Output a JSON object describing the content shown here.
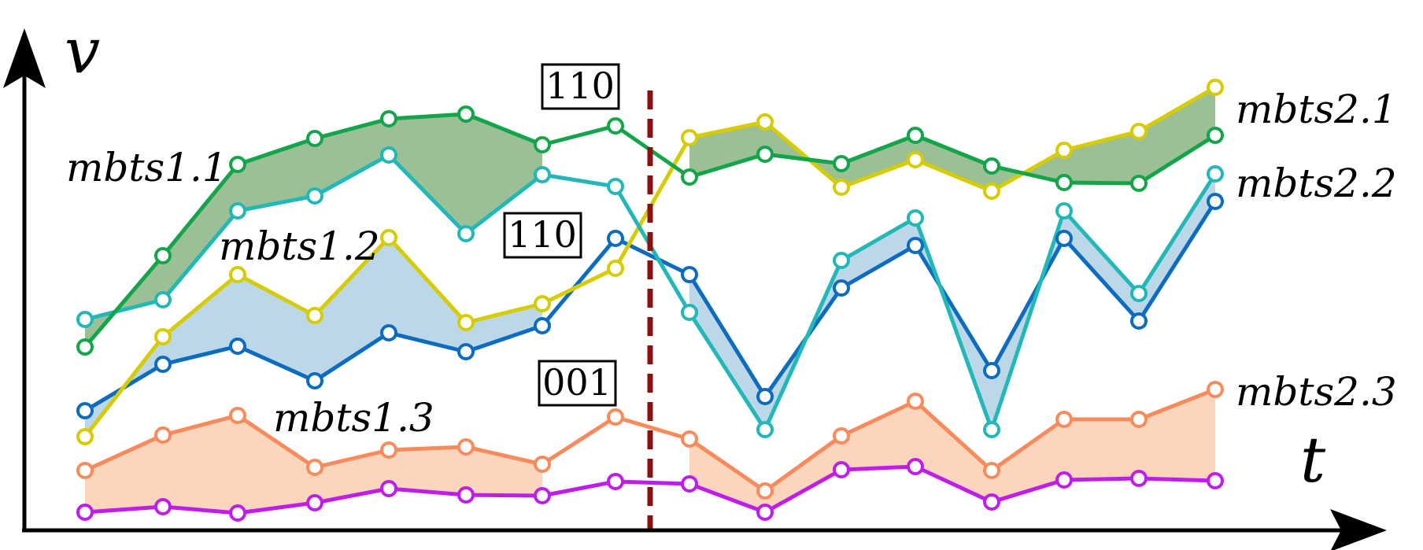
{
  "axes": {
    "y_label": "v",
    "x_label": "t"
  },
  "labels": {
    "mbts1_1": "mbts1.1",
    "mbts1_2": "mbts1.2",
    "mbts1_3": "mbts1.3",
    "mbts2_1": "mbts2.1",
    "mbts2_2": "mbts2.2",
    "mbts2_3": "mbts2.3"
  },
  "codes": {
    "top": "110",
    "middle": "110",
    "bottom": "001"
  },
  "colors": {
    "green": "#12a54a",
    "teal": "#22b8b8",
    "yellow": "#d6cc00",
    "blue": "#0b6cc0",
    "orange": "#f98a5c",
    "purple": "#c01cec",
    "fill_green": "#9cc095",
    "fill_blue": "#bcd8e8",
    "fill_orange": "#fcd6bc",
    "divider": "#8b1010"
  }
}
